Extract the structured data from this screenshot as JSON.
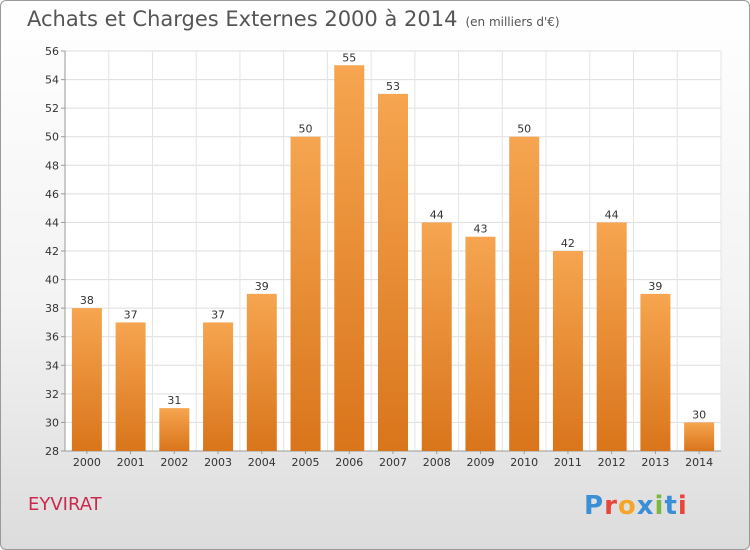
{
  "header": {
    "title": "Achats et Charges Externes 2000 à 2014",
    "subtitle": "(en milliers d'€)"
  },
  "footer": {
    "commune": "EYVIRAT",
    "logo_text": "Proxiti",
    "logo_colors": [
      "#3a8fd6",
      "#e8463a",
      "#f2a62b",
      "#3a8fd6",
      "#7ab83f",
      "#3a8fd6",
      "#e8463a"
    ]
  },
  "chart_data": {
    "type": "bar",
    "title": "Achats et Charges Externes 2000 à 2014",
    "subtitle": "(en milliers d'€)",
    "categories": [
      "2000",
      "2001",
      "2002",
      "2003",
      "2004",
      "2005",
      "2006",
      "2007",
      "2008",
      "2009",
      "2010",
      "2011",
      "2012",
      "2013",
      "2014"
    ],
    "values": [
      38,
      37,
      31,
      37,
      39,
      50,
      55,
      53,
      44,
      43,
      50,
      42,
      44,
      39,
      30
    ],
    "ylim": [
      28,
      56
    ],
    "yticks": [
      28,
      30,
      32,
      34,
      36,
      38,
      40,
      42,
      44,
      46,
      48,
      50,
      52,
      54,
      56
    ],
    "grid": true,
    "bar_color_top": "#f6a550",
    "bar_color_bottom": "#d9751b"
  }
}
